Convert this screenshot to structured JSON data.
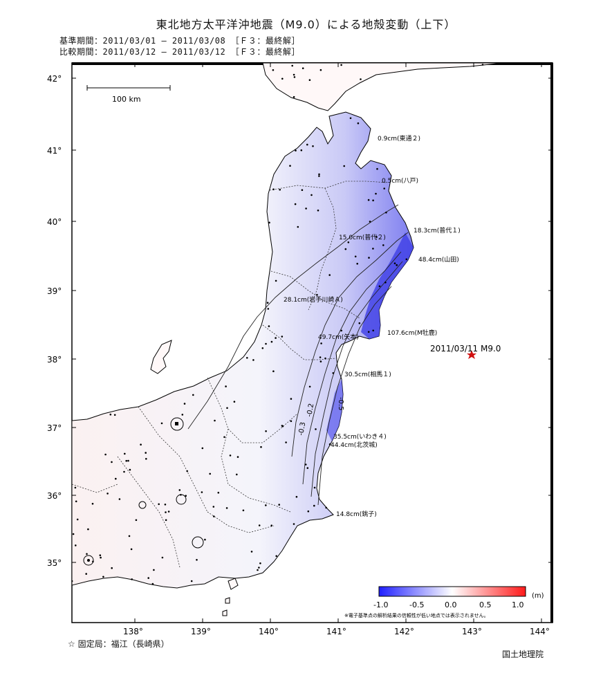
{
  "title": "東北地方太平洋沖地震（M9.0）による地殻変動（上下）",
  "reference_period": "基準期間：2011/03/01 – 2011/03/08 ［Ｆ３：最終解］",
  "comparison_period": "比較期間：2011/03/12 – 2011/03/12 ［Ｆ３：最終解］",
  "scale_bar_label": "100 km",
  "lat_labels": [
    "42°",
    "41°",
    "40°",
    "39°",
    "38°",
    "37°",
    "36°",
    "35°"
  ],
  "lon_labels": [
    "138°",
    "139°",
    "140°",
    "141°",
    "142°",
    "143°",
    "144°"
  ],
  "epicenter_label": "2011/03/11 M9.0",
  "station_annotations": [
    "0.9cm(東通２)",
    "0.5cm(八戸)",
    "18.3cm(普代１)",
    "15.0cm(普代２)",
    "48.4cm(山田)",
    "28.1cm(岩手川崎Ａ)",
    "107.6cm(M牡鹿)",
    "49.7cm(矢本)",
    "30.5cm(相馬１)",
    "35.5cm(いわき４)",
    "44.4cm(北茨城)",
    "14.8cm(銚子)"
  ],
  "contour_labels": [
    "-0.2",
    "-0.3",
    "-0.5"
  ],
  "colorbar": {
    "unit": "(m)",
    "ticks": [
      "-1.0",
      "-0.5",
      "0.0",
      "0.5",
      "1.0"
    ],
    "note": "※電子基準点の解析結果の信頼性が低い地点では表示されません。",
    "colors": [
      "#2b2bff",
      "#ffffff",
      "#ff2020"
    ]
  },
  "fixed_station": "☆ 固定局：福江（長崎県）",
  "credit": "国土地理院"
}
